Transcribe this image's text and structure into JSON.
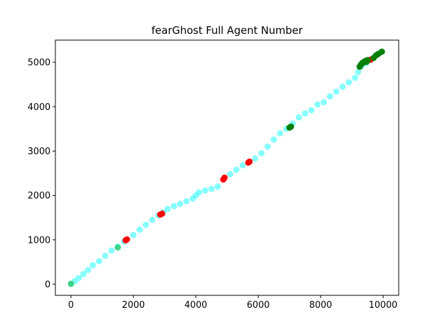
{
  "chart_data": {
    "type": "scatter",
    "title": "fearGhost Full Agent Number",
    "xlabel": "",
    "ylabel": "",
    "xlim": [
      -500,
      10500
    ],
    "ylim": [
      -250,
      5500
    ],
    "xticks": [
      0,
      2000,
      4000,
      6000,
      8000,
      10000
    ],
    "yticks": [
      0,
      1000,
      2000,
      3000,
      4000,
      5000
    ],
    "grid": false,
    "legend": "none",
    "series": [
      {
        "color": "#33ffff",
        "alpha": 0.6,
        "points": [
          [
            0,
            10
          ],
          [
            120,
            70
          ],
          [
            250,
            140
          ],
          [
            400,
            230
          ],
          [
            550,
            320
          ],
          [
            700,
            430
          ],
          [
            900,
            520
          ],
          [
            1100,
            640
          ],
          [
            1300,
            760
          ],
          [
            1500,
            850
          ],
          [
            1700,
            960
          ],
          [
            1800,
            1010
          ],
          [
            2000,
            1110
          ],
          [
            2200,
            1230
          ],
          [
            2400,
            1340
          ],
          [
            2600,
            1450
          ],
          [
            2800,
            1550
          ],
          [
            2950,
            1620
          ],
          [
            3100,
            1700
          ],
          [
            3300,
            1760
          ],
          [
            3500,
            1810
          ],
          [
            3700,
            1870
          ],
          [
            3900,
            1930
          ],
          [
            4000,
            2000
          ],
          [
            4100,
            2070
          ],
          [
            4300,
            2110
          ],
          [
            4500,
            2150
          ],
          [
            4700,
            2200
          ],
          [
            4900,
            2380
          ],
          [
            5100,
            2480
          ],
          [
            5300,
            2580
          ],
          [
            5500,
            2680
          ],
          [
            5700,
            2750
          ],
          [
            5900,
            2830
          ],
          [
            6100,
            2950
          ],
          [
            6300,
            3100
          ],
          [
            6500,
            3260
          ],
          [
            6700,
            3400
          ],
          [
            6900,
            3500
          ],
          [
            7100,
            3620
          ],
          [
            7300,
            3760
          ],
          [
            7500,
            3850
          ],
          [
            7700,
            3920
          ],
          [
            7900,
            4050
          ],
          [
            8100,
            4100
          ],
          [
            8300,
            4230
          ],
          [
            8500,
            4340
          ],
          [
            8700,
            4450
          ],
          [
            8900,
            4550
          ],
          [
            9100,
            4650
          ],
          [
            9200,
            4780
          ],
          [
            9300,
            4900
          ],
          [
            9450,
            4980
          ],
          [
            9600,
            5050
          ],
          [
            9750,
            5150
          ],
          [
            9900,
            5220
          ]
        ]
      },
      {
        "color": "#2ecc71",
        "alpha": 0.85,
        "points": [
          [
            0,
            10
          ],
          [
            1500,
            830
          ]
        ]
      },
      {
        "color": "#ff0000",
        "alpha": 1,
        "points": [
          [
            1750,
            990
          ],
          [
            1790,
            1010
          ],
          [
            2860,
            1570
          ],
          [
            2920,
            1590
          ],
          [
            4880,
            2360
          ],
          [
            4920,
            2400
          ],
          [
            5680,
            2740
          ],
          [
            5720,
            2760
          ],
          [
            9600,
            5060
          ]
        ]
      },
      {
        "color": "#008000",
        "alpha": 1,
        "points": [
          [
            7000,
            3530
          ],
          [
            7050,
            3550
          ],
          [
            9250,
            4900
          ],
          [
            9280,
            4940
          ],
          [
            9310,
            4960
          ],
          [
            9340,
            4990
          ],
          [
            9380,
            5000
          ],
          [
            9420,
            5030
          ],
          [
            9470,
            5010
          ],
          [
            9500,
            5050
          ],
          [
            9700,
            5100
          ],
          [
            9780,
            5160
          ],
          [
            9850,
            5190
          ],
          [
            9960,
            5240
          ]
        ]
      }
    ]
  }
}
